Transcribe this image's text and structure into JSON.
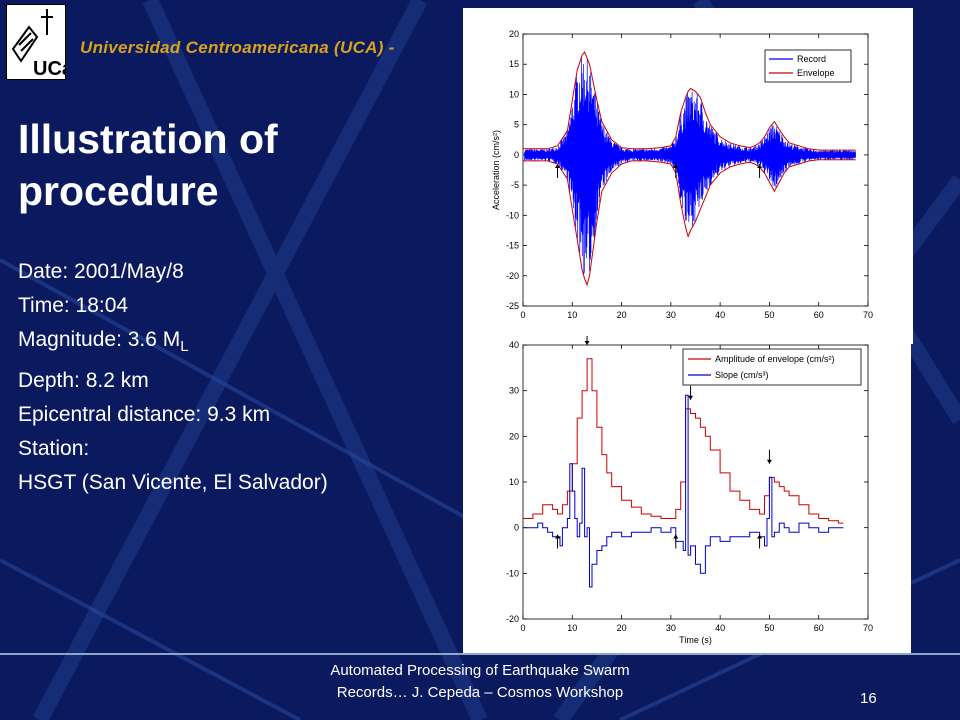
{
  "header": {
    "university": "Universidad Centroamericana (UCA) - ",
    "logo_text": "UCa"
  },
  "slide": {
    "title": "Illustration of procedure",
    "date": "Date: 2001/May/8",
    "time": "Time: 18:04",
    "magnitude_prefix": "Magnitude: 3.6 M",
    "magnitude_sub": "L",
    "depth": "Depth: 8.2 km",
    "epicentral": "Epicentral distance: 9.3 km",
    "station_label": "Station:",
    "station_name": "HSGT (San Vicente, El Salvador)"
  },
  "footer": {
    "line1": "Automated Processing of Earthquake Swarm",
    "line2": "Records… J. Cepeda – Cosmos Workshop",
    "page": "16"
  },
  "colors": {
    "background": "#0b1a5e",
    "header_text": "#d9a21e",
    "record": "#0000ff",
    "envelope": "#cc0000"
  },
  "chart_data": [
    {
      "type": "line",
      "ylabel": "Acceleration (cm/s²)",
      "xlabel": "",
      "xlim": [
        0,
        70
      ],
      "ylim": [
        -25,
        20
      ],
      "xticks": [
        "0",
        "10",
        "20",
        "30",
        "40",
        "50",
        "60",
        "70"
      ],
      "yticks": [
        "-25",
        "-20",
        "-15",
        "-10",
        "-5",
        "0",
        "5",
        "10",
        "15",
        "20"
      ],
      "legend": "top-right",
      "series": [
        {
          "name": "Record",
          "color": "#0000ff"
        },
        {
          "name": "Envelope",
          "color": "#cc0000",
          "x": [
            0,
            5,
            7,
            9,
            10,
            11,
            12,
            12.5,
            13,
            13.5,
            14,
            15,
            16,
            18,
            20,
            22,
            25,
            28,
            30,
            31,
            32,
            33,
            33.5,
            34,
            35,
            36,
            37,
            38,
            40,
            42,
            44,
            46,
            47,
            48,
            49,
            50,
            51,
            52,
            53,
            54,
            56,
            58,
            60,
            62,
            64,
            66,
            67.5
          ],
          "upper": [
            1,
            1,
            1.5,
            4,
            9,
            14,
            16.5,
            17,
            16,
            15,
            13,
            9,
            5.5,
            2.5,
            1.2,
            1,
            1,
            1.2,
            1.5,
            3,
            7,
            9.5,
            10.5,
            11,
            10.5,
            9.5,
            7,
            5,
            3,
            2,
            1.5,
            1.2,
            1.5,
            2,
            3,
            4.5,
            5.5,
            4.2,
            3,
            2,
            1.5,
            1,
            0.8,
            0.8,
            0.8,
            0.8,
            0.8
          ],
          "lower": [
            -1,
            -1,
            -1.5,
            -4,
            -9,
            -14,
            -19,
            -20.5,
            -21.5,
            -20,
            -17,
            -11,
            -6,
            -3,
            -1.5,
            -1,
            -1,
            -1.2,
            -1.5,
            -3,
            -8,
            -12,
            -13.5,
            -12.5,
            -11,
            -9,
            -7,
            -5,
            -3,
            -2,
            -1.5,
            -1.2,
            -1.5,
            -2,
            -3,
            -4.5,
            -6,
            -4.5,
            -3,
            -2,
            -1.5,
            -1,
            -0.8,
            -0.8,
            -0.8,
            -0.8,
            -0.8
          ]
        }
      ],
      "arrows_up_at": [
        7,
        31,
        48
      ]
    },
    {
      "type": "line",
      "xlabel": "Time (s)",
      "ylabel": "",
      "xlim": [
        0,
        70
      ],
      "ylim": [
        -20,
        40
      ],
      "xticks": [
        "0",
        "10",
        "20",
        "30",
        "40",
        "50",
        "60",
        "70"
      ],
      "yticks": [
        "-20",
        "-10",
        "0",
        "10",
        "20",
        "30",
        "40"
      ],
      "legend": "top-right",
      "series": [
        {
          "name": "Amplitude of envelope (cm/s²)",
          "color": "#cc0000",
          "x": [
            0,
            2,
            4,
            6,
            7,
            8,
            9,
            10,
            11,
            12,
            13,
            14,
            15,
            16,
            17,
            18,
            20,
            22,
            24,
            26,
            28,
            30,
            31,
            32,
            33,
            34,
            35,
            36,
            37,
            38,
            40,
            42,
            44,
            46,
            48,
            49,
            50,
            51,
            52,
            53,
            54,
            56,
            58,
            60,
            62,
            64,
            65
          ],
          "y": [
            2,
            3,
            5,
            4,
            3,
            5,
            8,
            14,
            24,
            30,
            37,
            30,
            22,
            16,
            12,
            9,
            6,
            4.5,
            3,
            2.5,
            2,
            2,
            4,
            10,
            26,
            25,
            24,
            22,
            20,
            17,
            12,
            8,
            6,
            4,
            3,
            7,
            11,
            10,
            9,
            8,
            7,
            5,
            3,
            2,
            1.5,
            1,
            1
          ]
        },
        {
          "name": "Slope (cm/s³)",
          "color": "#0000cc",
          "x": [
            0,
            2,
            3,
            4,
            5,
            6,
            7,
            7.5,
            8,
            9,
            9.5,
            10,
            10.5,
            11,
            11.5,
            12,
            12.5,
            13,
            13.5,
            14,
            15,
            16,
            17,
            18,
            20,
            22,
            24,
            26,
            28,
            30,
            31,
            32,
            32.5,
            33,
            33.5,
            34,
            35,
            36,
            37,
            38,
            40,
            42,
            44,
            46,
            48,
            49,
            49.5,
            50,
            50.5,
            51,
            52,
            53,
            54,
            55,
            56,
            58,
            60,
            62,
            64,
            65
          ],
          "y": [
            0,
            0,
            1,
            0,
            -1,
            -2,
            -2,
            -4,
            0,
            2,
            14,
            8,
            2,
            -2,
            1,
            13,
            -2,
            0,
            -13,
            -8,
            -5,
            -4,
            -2,
            -1,
            -2,
            -1,
            -1,
            0,
            -1,
            0,
            -3,
            -3,
            -5,
            29,
            -6,
            -4,
            -8,
            -10,
            -4,
            -2,
            -3,
            -2,
            -2,
            -1,
            -2,
            -4,
            2,
            11,
            -2,
            -1,
            1,
            0,
            -1,
            -1,
            1,
            0,
            -1,
            0,
            0,
            0
          ]
        }
      ],
      "arrows_down_at": [
        13,
        34,
        50
      ],
      "arrows_up_at": [
        7,
        31,
        48
      ]
    }
  ]
}
